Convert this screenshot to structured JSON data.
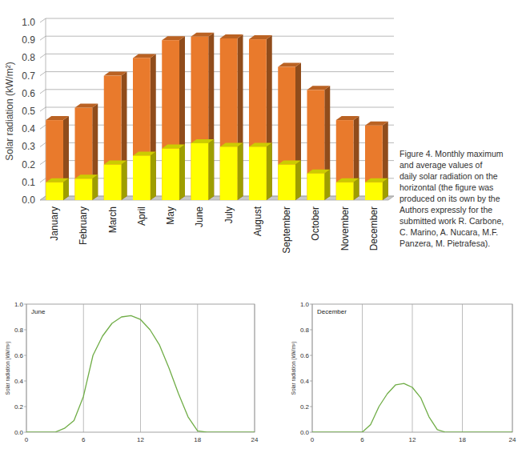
{
  "chart_data": [
    {
      "type": "bar",
      "y_label": "Solar radiation (kW/m²)",
      "categories": [
        "January",
        "February",
        "March",
        "April",
        "May",
        "June",
        "July",
        "August",
        "September",
        "October",
        "November",
        "December"
      ],
      "series": [
        {
          "color": "#e97a2c",
          "values": [
            0.45,
            0.52,
            0.7,
            0.8,
            0.9,
            0.92,
            0.91,
            0.905,
            0.75,
            0.62,
            0.45,
            0.42
          ]
        },
        {
          "color": "#ffff00",
          "values": [
            0.1,
            0.12,
            0.2,
            0.25,
            0.29,
            0.32,
            0.3,
            0.3,
            0.2,
            0.15,
            0.1,
            0.1
          ]
        }
      ],
      "stacked": false,
      "ylim": [
        0,
        1
      ],
      "yticks": [
        {
          "value": 0,
          "label": "0.0"
        },
        0.1,
        0.2,
        0.3,
        0.4,
        0.5,
        0.6,
        0.7,
        0.8,
        0.9,
        {
          "value": 1,
          "label": "1.0"
        }
      ],
      "grid": true,
      "caption": [
        "Figure 4. Monthly maximum",
        "and average values of",
        "daily solar radiation on the",
        "horizontal (the figure was",
        "produced on its own by the",
        "Authors expressly for the",
        "submitted work R. Carbone,",
        "C. Marino, A. Nucara, M.F.",
        "Panzera, M. Pietrafesa)."
      ]
    },
    {
      "type": "line",
      "title": "June",
      "y_label": "Solar radiation (kW/m²)",
      "x": [
        0,
        1,
        2,
        3,
        4,
        5,
        6,
        7,
        8,
        9,
        10,
        11,
        12,
        13,
        14,
        15,
        16,
        17,
        18,
        19,
        20,
        21,
        22,
        23,
        24
      ],
      "series": [
        {
          "color": "#70ad47",
          "values": [
            0,
            0,
            0,
            0,
            0.03,
            0.09,
            0.28,
            0.6,
            0.75,
            0.85,
            0.9,
            0.91,
            0.88,
            0.8,
            0.68,
            0.5,
            0.3,
            0.12,
            0.01,
            0,
            0,
            0,
            0,
            0,
            0
          ]
        }
      ],
      "xlim": [
        0,
        24
      ],
      "xticks": [
        0,
        6,
        12,
        18,
        24
      ],
      "ylim": [
        0,
        1
      ],
      "yticks": [
        {
          "value": 0,
          "label": "0.0"
        },
        0.2,
        0.4,
        0.6,
        0.8,
        {
          "value": 1,
          "label": "1.0"
        }
      ],
      "grid": "x"
    },
    {
      "type": "line",
      "title": "December",
      "y_label": "Solar radiation (kW/m²)",
      "x": [
        0,
        1,
        2,
        3,
        4,
        5,
        6,
        7,
        8,
        9,
        10,
        11,
        12,
        13,
        14,
        15,
        16,
        17,
        18,
        19,
        20,
        21,
        22,
        23,
        24
      ],
      "series": [
        {
          "color": "#70ad47",
          "values": [
            0,
            0,
            0,
            0,
            0,
            0,
            0,
            0.06,
            0.2,
            0.3,
            0.37,
            0.38,
            0.35,
            0.27,
            0.12,
            0.02,
            0,
            0,
            0,
            0,
            0,
            0,
            0,
            0,
            0
          ]
        }
      ],
      "xlim": [
        0,
        24
      ],
      "xticks": [
        0,
        6,
        12,
        18,
        24
      ],
      "ylim": [
        0,
        1
      ],
      "yticks": [
        {
          "value": 0,
          "label": "0.0"
        },
        0.2,
        0.4,
        0.6,
        0.8,
        {
          "value": 1,
          "label": "1.0"
        }
      ],
      "grid": "x"
    }
  ]
}
